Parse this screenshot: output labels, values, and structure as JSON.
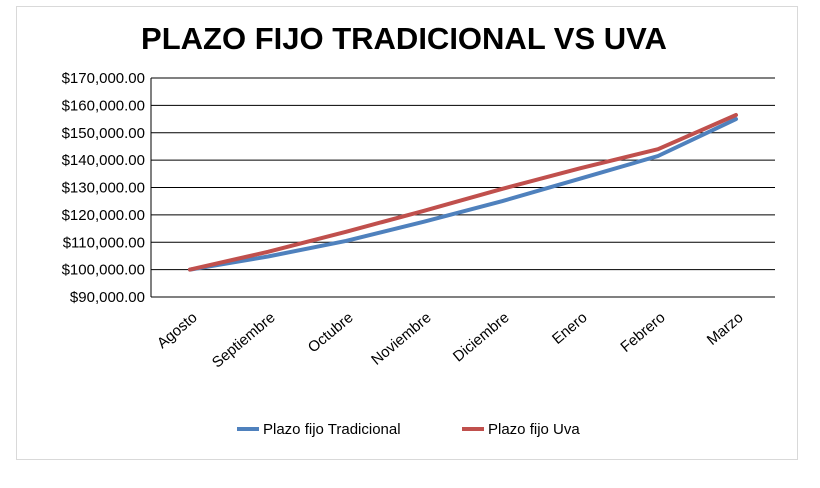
{
  "chart_data": {
    "type": "line",
    "title": "PLAZO FIJO TRADICIONAL VS UVA",
    "xlabel": "",
    "ylabel": "",
    "categories": [
      "Agosto",
      "Septiembre",
      "Octubre",
      "Noviembre",
      "Diciembre",
      "Enero",
      "Febrero",
      "Marzo"
    ],
    "y_ticks": [
      "$90,000.00",
      "$100,000.00",
      "$110,000.00",
      "$120,000.00",
      "$130,000.00",
      "$140,000.00",
      "$150,000.00",
      "$160,000.00",
      "$170,000.00"
    ],
    "ylim": [
      90000,
      170000
    ],
    "grid": true,
    "legend_position": "bottom",
    "series": [
      {
        "name": "Plazo fijo Tradicional",
        "color": "#4f81bd",
        "values": [
          100000,
          104800,
          110500,
          117500,
          125000,
          133200,
          141500,
          155000
        ]
      },
      {
        "name": "Plazo fijo Uva",
        "color": "#c0504d",
        "values": [
          100000,
          106500,
          113800,
          121500,
          129500,
          137000,
          144000,
          156500
        ]
      }
    ]
  }
}
